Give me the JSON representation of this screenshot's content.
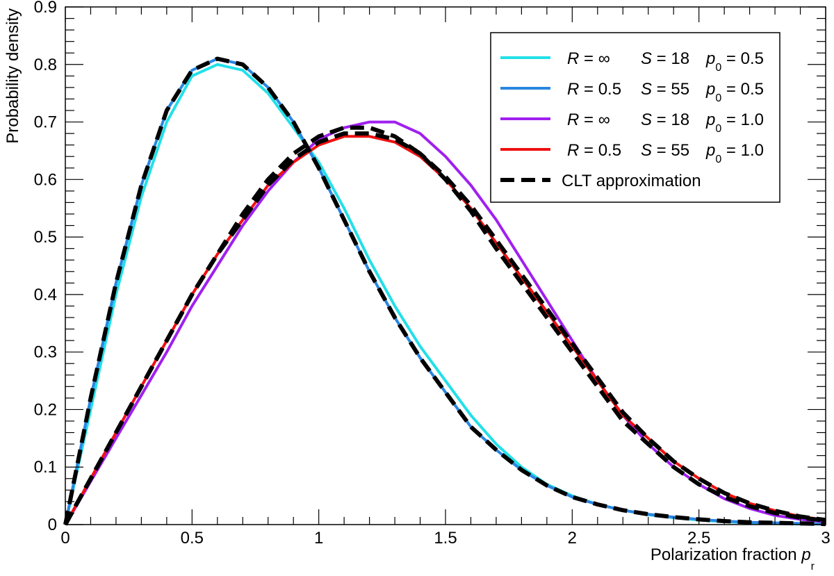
{
  "chart_data": {
    "type": "line",
    "title": "",
    "xlabel": "Polarization fraction",
    "xlabel_symbol": "p",
    "xlabel_subscript": "r",
    "ylabel": "Probability density",
    "xlim": [
      0,
      3
    ],
    "ylim": [
      0,
      0.9
    ],
    "x_ticks": [
      0,
      0.5,
      1,
      1.5,
      2,
      2.5,
      3
    ],
    "x_tick_labels": [
      "0",
      "0.5",
      "1",
      "1.5",
      "2",
      "2.5",
      "3"
    ],
    "y_ticks": [
      0,
      0.1,
      0.2,
      0.3,
      0.4,
      0.5,
      0.6,
      0.7,
      0.8,
      0.9
    ],
    "y_tick_labels": [
      "0",
      "0.1",
      "0.2",
      "0.3",
      "0.4",
      "0.5",
      "0.6",
      "0.7",
      "0.8",
      "0.9"
    ],
    "grid": false,
    "legend_position": "top-right",
    "x": [
      0,
      0.1,
      0.2,
      0.3,
      0.4,
      0.5,
      0.6,
      0.7,
      0.8,
      0.9,
      1.0,
      1.1,
      1.2,
      1.3,
      1.4,
      1.5,
      1.6,
      1.7,
      1.8,
      1.9,
      2.0,
      2.1,
      2.2,
      2.3,
      2.4,
      2.5,
      2.6,
      2.7,
      2.8,
      2.9,
      3.0
    ],
    "series": [
      {
        "name": "R = ∞  S = 18  p0 = 0.5",
        "legend": {
          "R": "R = ∞",
          "S": "S = 18",
          "p": "p",
          "p_sub": "0",
          "p_val": "= 0.5"
        },
        "color": "#22e0e8",
        "dash": false,
        "values": [
          0,
          0.2,
          0.4,
          0.57,
          0.7,
          0.78,
          0.8,
          0.79,
          0.75,
          0.69,
          0.63,
          0.55,
          0.46,
          0.38,
          0.31,
          0.25,
          0.19,
          0.14,
          0.1,
          0.07,
          0.05,
          0.035,
          0.025,
          0.017,
          0.012,
          0.008,
          0.005,
          0.003,
          0.002,
          0.001,
          0.0008
        ]
      },
      {
        "name": "R = 0.5  S = 55  p0 = 0.5",
        "legend": {
          "R": "R = 0.5",
          "S": "S = 55",
          "p": "p",
          "p_sub": "0",
          "p_val": "= 0.5"
        },
        "color": "#2a86e0",
        "dash": false,
        "values": [
          0,
          0.22,
          0.42,
          0.59,
          0.72,
          0.79,
          0.81,
          0.8,
          0.76,
          0.7,
          0.62,
          0.53,
          0.44,
          0.36,
          0.29,
          0.23,
          0.17,
          0.13,
          0.095,
          0.068,
          0.048,
          0.035,
          0.025,
          0.018,
          0.013,
          0.009,
          0.006,
          0.004,
          0.003,
          0.002,
          0.001
        ]
      },
      {
        "name": "R = ∞  S = 18  p0 = 1.0",
        "legend": {
          "R": "R = ∞",
          "S": "S = 18",
          "p": "p",
          "p_sub": "0",
          "p_val": "= 1.0"
        },
        "color": "#a020f0",
        "dash": false,
        "values": [
          0,
          0.075,
          0.15,
          0.225,
          0.3,
          0.38,
          0.45,
          0.52,
          0.58,
          0.63,
          0.67,
          0.69,
          0.7,
          0.7,
          0.68,
          0.64,
          0.59,
          0.53,
          0.46,
          0.39,
          0.32,
          0.25,
          0.19,
          0.14,
          0.1,
          0.07,
          0.045,
          0.028,
          0.016,
          0.009,
          0.005
        ]
      },
      {
        "name": "R = 0.5  S = 55  p0 = 1.0",
        "legend": {
          "R": "R = 0.5",
          "S": "S = 55",
          "p": "p",
          "p_sub": "0",
          "p_val": "= 1.0"
        },
        "color": "#ee1111",
        "dash": false,
        "values": [
          0,
          0.08,
          0.16,
          0.24,
          0.32,
          0.4,
          0.47,
          0.53,
          0.59,
          0.63,
          0.66,
          0.675,
          0.675,
          0.665,
          0.64,
          0.6,
          0.55,
          0.49,
          0.43,
          0.37,
          0.31,
          0.25,
          0.19,
          0.15,
          0.11,
          0.08,
          0.055,
          0.037,
          0.024,
          0.014,
          0.008
        ]
      },
      {
        "name": "CLT approximation",
        "legend": {
          "label": "CLT approximation"
        },
        "color": "#000000",
        "dash": true,
        "values": [
          0,
          0.22,
          0.42,
          0.59,
          0.72,
          0.79,
          0.81,
          0.8,
          0.76,
          0.7,
          0.62,
          0.53,
          0.44,
          0.36,
          0.29,
          0.23,
          0.17,
          0.13,
          0.095,
          0.068,
          0.048,
          0.035,
          0.025,
          0.018,
          0.013,
          0.009,
          0.006,
          0.004,
          0.003,
          0.002,
          0.001
        ]
      },
      {
        "name": "CLT approximation (p0 = 1.0)",
        "legend_hidden": true,
        "color": "#000000",
        "dash": true,
        "values": [
          0,
          0.08,
          0.16,
          0.24,
          0.32,
          0.4,
          0.47,
          0.54,
          0.6,
          0.645,
          0.675,
          0.69,
          0.69,
          0.675,
          0.645,
          0.6,
          0.545,
          0.48,
          0.42,
          0.36,
          0.3,
          0.24,
          0.18,
          0.14,
          0.1,
          0.07,
          0.048,
          0.032,
          0.02,
          0.012,
          0.007
        ]
      },
      {
        "name": "CLT approximation (p0 = 1.0, R = 0.5)",
        "legend_hidden": true,
        "color": "#000000",
        "dash": true,
        "values": [
          0,
          0.08,
          0.16,
          0.24,
          0.32,
          0.4,
          0.47,
          0.53,
          0.59,
          0.635,
          0.665,
          0.68,
          0.68,
          0.67,
          0.645,
          0.605,
          0.555,
          0.495,
          0.435,
          0.375,
          0.315,
          0.255,
          0.195,
          0.15,
          0.11,
          0.08,
          0.055,
          0.037,
          0.024,
          0.014,
          0.008
        ]
      }
    ]
  }
}
